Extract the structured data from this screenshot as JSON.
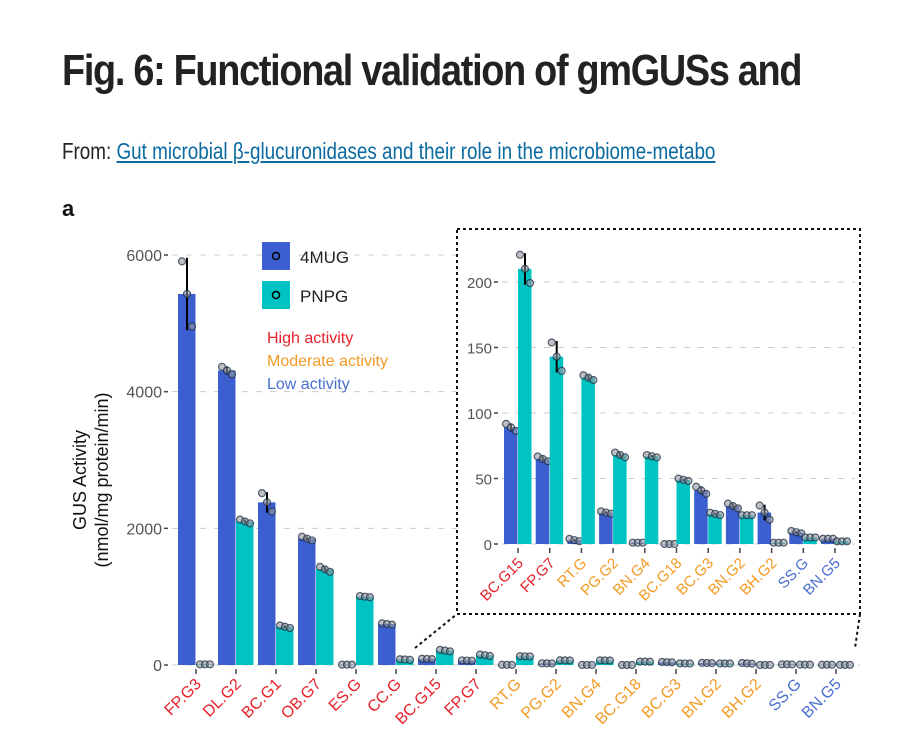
{
  "header": {
    "title": "Fig. 6: Functional validation of gmGUSs and",
    "from_label": "From:",
    "from_link": "Gut microbial β-glucuronidases and their role in the microbiome-metabo",
    "panel_label": "a"
  },
  "colors": {
    "4MUG": "#3b5fcf",
    "PNPG": "#00c3c3",
    "high": "#e8202a",
    "moderate": "#f39a25",
    "low": "#4a6fd0"
  },
  "chart_data": {
    "type": "bar",
    "ylabel_line1": "GUS Activity",
    "ylabel_line2": "(nmol/mg protein/min)",
    "ylim": [
      0,
      6200
    ],
    "yticks": [
      "0",
      "2000",
      "4000",
      "6000"
    ],
    "ytick_values": [
      0,
      2000,
      4000,
      6000
    ],
    "grid": true,
    "legend": {
      "position": "top-center",
      "entries": [
        "4MUG",
        "PNPG"
      ]
    },
    "activity_legend": [
      "High activity",
      "Moderate activity",
      "Low activity"
    ],
    "categories": [
      "FP.G3",
      "DL.G2",
      "BC.G1",
      "OB.G7",
      "ES.G",
      "CC.G",
      "BC.G15",
      "FP.G7",
      "RT.G",
      "PG.G2",
      "BN.G4",
      "BC.G18",
      "BC.G3",
      "BN.G2",
      "BH.G2",
      "SS.G",
      "BN.G5"
    ],
    "activity": [
      "high",
      "high",
      "high",
      "high",
      "high",
      "high",
      "high",
      "high",
      "moderate",
      "moderate",
      "moderate",
      "moderate",
      "moderate",
      "moderate",
      "moderate",
      "low",
      "low"
    ],
    "series": [
      {
        "name": "4MUG",
        "values": [
          5430,
          4310,
          2380,
          1850,
          5,
          600,
          89,
          65,
          3,
          24,
          1,
          0,
          41,
          29,
          24,
          9,
          4
        ],
        "err": [
          530,
          60,
          150,
          30,
          0,
          10,
          3,
          2,
          1,
          1,
          0,
          0,
          3,
          2,
          6,
          1,
          0
        ]
      },
      {
        "name": "PNPG",
        "values": [
          10,
          2100,
          560,
          1400,
          1000,
          80,
          210,
          143,
          127,
          68,
          67,
          49,
          23,
          22,
          1,
          5,
          2
        ],
        "err": [
          0,
          30,
          20,
          40,
          10,
          5,
          12,
          12,
          2,
          2,
          1,
          1,
          1,
          0,
          0,
          0,
          0
        ]
      }
    ],
    "inset": {
      "categories": [
        "BC.G15",
        "FP.G7",
        "RT.G",
        "PG.G2",
        "BN.G4",
        "BC.G18",
        "BC.G3",
        "BN.G2",
        "BH.G2",
        "SS.G",
        "BN.G5"
      ],
      "ylim": [
        0,
        230
      ],
      "yticks": [
        "0",
        "50",
        "100",
        "150",
        "200"
      ],
      "ytick_values": [
        0,
        50,
        100,
        150,
        200
      ]
    }
  }
}
